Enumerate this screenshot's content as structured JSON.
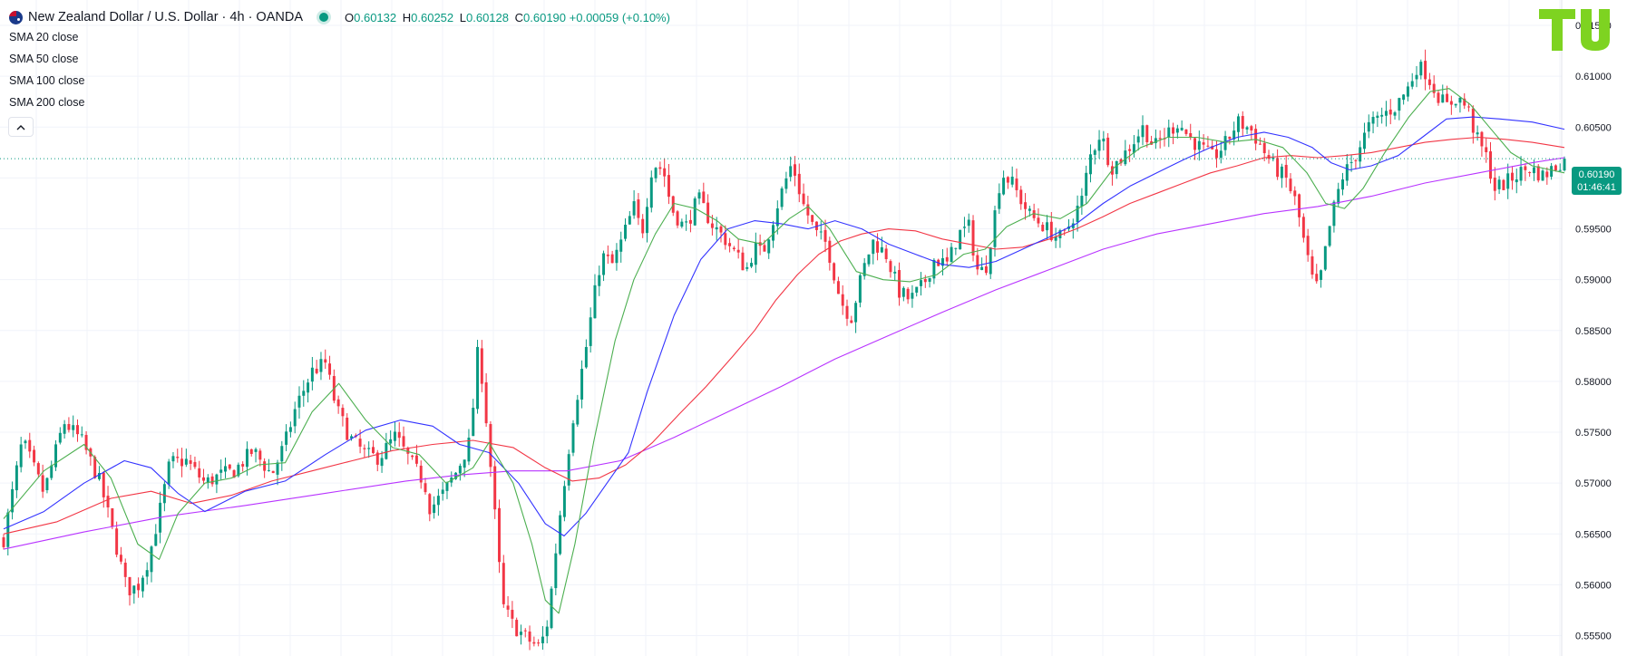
{
  "header": {
    "title": "New Zealand Dollar / U.S. Dollar · 4h · OANDA",
    "ohlc": [
      {
        "key": "O",
        "value": "0.60132"
      },
      {
        "key": "H",
        "value": "0.60252"
      },
      {
        "key": "L",
        "value": "0.60128"
      },
      {
        "key": "C",
        "value": "0.60190"
      }
    ],
    "change": "+0.00059 (+0.10%)"
  },
  "indicators": [
    {
      "label": "SMA",
      "param": "20 close",
      "color": "#4caf50"
    },
    {
      "label": "SMA",
      "param": "50 close",
      "color": "#3333ff"
    },
    {
      "label": "SMA",
      "param": "100 close",
      "color": "#f23645"
    },
    {
      "label": "SMA",
      "param": "200 close",
      "color": "#b833ff"
    }
  ],
  "collapse_icon": "chevron-up-icon",
  "logo_text": "TU",
  "current_price": {
    "price": "0.60190",
    "countdown": "01:46:41"
  },
  "colors": {
    "up": "#089981",
    "down": "#f23645",
    "grid": "#f0f3fa",
    "accent": "#089981",
    "logo": "#7ed321"
  },
  "chart_data": {
    "type": "candlestick",
    "symbol": "NZDUSD",
    "timeframe": "4h",
    "ylim": [
      0.553,
      0.6175
    ],
    "y_ticks": [
      "0.61500",
      "0.61000",
      "0.60500",
      "0.60000",
      "0.59500",
      "0.59000",
      "0.58500",
      "0.58000",
      "0.57500",
      "0.57000",
      "0.56500",
      "0.56000",
      "0.55500"
    ],
    "last_price": 0.6019,
    "candle_count": 360,
    "close_path": [
      [
        0,
        0.5645
      ],
      [
        14,
        0.5742
      ],
      [
        30,
        0.569
      ],
      [
        45,
        0.576
      ],
      [
        58,
        0.5742
      ],
      [
        72,
        0.57
      ],
      [
        84,
        0.5638
      ],
      [
        92,
        0.5595
      ],
      [
        100,
        0.5598
      ],
      [
        108,
        0.5625
      ],
      [
        116,
        0.567
      ],
      [
        124,
        0.572
      ],
      [
        136,
        0.5722
      ],
      [
        150,
        0.57
      ],
      [
        162,
        0.5708
      ],
      [
        172,
        0.5712
      ],
      [
        186,
        0.5732
      ],
      [
        200,
        0.5708
      ],
      [
        210,
        0.574
      ],
      [
        218,
        0.5775
      ],
      [
        230,
        0.581
      ],
      [
        240,
        0.5818
      ],
      [
        248,
        0.5774
      ],
      [
        258,
        0.5745
      ],
      [
        270,
        0.5728
      ],
      [
        280,
        0.5725
      ],
      [
        292,
        0.5746
      ],
      [
        304,
        0.572
      ],
      [
        314,
        0.57
      ],
      [
        318,
        0.5675
      ],
      [
        328,
        0.569
      ],
      [
        338,
        0.5712
      ],
      [
        348,
        0.5742
      ],
      [
        354,
        0.5835
      ],
      [
        358,
        0.579
      ],
      [
        365,
        0.569
      ],
      [
        372,
        0.558
      ],
      [
        380,
        0.556
      ],
      [
        392,
        0.5545
      ],
      [
        400,
        0.5538
      ],
      [
        406,
        0.5565
      ],
      [
        414,
        0.566
      ],
      [
        424,
        0.576
      ],
      [
        434,
        0.583
      ],
      [
        440,
        0.588
      ],
      [
        446,
        0.5924
      ],
      [
        454,
        0.5915
      ],
      [
        460,
        0.5935
      ],
      [
        470,
        0.5972
      ],
      [
        476,
        0.5945
      ],
      [
        484,
        0.6015
      ],
      [
        492,
        0.6008
      ],
      [
        498,
        0.597
      ],
      [
        508,
        0.595
      ],
      [
        518,
        0.598
      ],
      [
        528,
        0.5955
      ],
      [
        538,
        0.594
      ],
      [
        546,
        0.5925
      ],
      [
        554,
        0.591
      ],
      [
        560,
        0.5932
      ],
      [
        566,
        0.5925
      ],
      [
        578,
        0.5978
      ],
      [
        588,
        0.6015
      ],
      [
        596,
        0.5975
      ],
      [
        606,
        0.5945
      ],
      [
        614,
        0.5935
      ],
      [
        624,
        0.588
      ],
      [
        632,
        0.5862
      ],
      [
        640,
        0.5905
      ],
      [
        648,
        0.5938
      ],
      [
        658,
        0.5925
      ],
      [
        668,
        0.5888
      ],
      [
        676,
        0.588
      ],
      [
        686,
        0.5895
      ],
      [
        694,
        0.592
      ],
      [
        704,
        0.5915
      ],
      [
        712,
        0.5945
      ],
      [
        720,
        0.5952
      ],
      [
        726,
        0.591
      ],
      [
        732,
        0.5908
      ],
      [
        738,
        0.5955
      ],
      [
        744,
        0.6005
      ],
      [
        752,
        0.5995
      ],
      [
        760,
        0.5975
      ],
      [
        766,
        0.5962
      ],
      [
        774,
        0.5955
      ],
      [
        782,
        0.5945
      ],
      [
        790,
        0.594
      ],
      [
        796,
        0.5958
      ],
      [
        804,
        0.5978
      ],
      [
        810,
        0.602
      ],
      [
        818,
        0.6045
      ],
      [
        826,
        0.601
      ],
      [
        834,
        0.602
      ],
      [
        842,
        0.6035
      ],
      [
        850,
        0.605
      ],
      [
        858,
        0.603
      ],
      [
        866,
        0.6042
      ],
      [
        876,
        0.6055
      ],
      [
        884,
        0.604
      ],
      [
        894,
        0.6028
      ],
      [
        902,
        0.602
      ],
      [
        912,
        0.6035
      ],
      [
        920,
        0.6055
      ],
      [
        930,
        0.6048
      ],
      [
        938,
        0.603
      ],
      [
        948,
        0.601
      ],
      [
        956,
        0.6
      ],
      [
        964,
        0.5975
      ],
      [
        970,
        0.5935
      ],
      [
        976,
        0.59
      ],
      [
        980,
        0.589
      ],
      [
        984,
        0.5915
      ],
      [
        990,
        0.596
      ],
      [
        998,
        0.6
      ],
      [
        1008,
        0.6022
      ],
      [
        1018,
        0.605
      ],
      [
        1028,
        0.6062
      ],
      [
        1038,
        0.607
      ],
      [
        1048,
        0.609
      ],
      [
        1054,
        0.611
      ],
      [
        1060,
        0.6105
      ],
      [
        1068,
        0.6085
      ],
      [
        1076,
        0.607
      ],
      [
        1084,
        0.608
      ],
      [
        1092,
        0.6068
      ],
      [
        1098,
        0.604
      ],
      [
        1106,
        0.602
      ],
      [
        1112,
        0.599
      ],
      [
        1120,
        0.5995
      ],
      [
        1130,
        0.6005
      ],
      [
        1138,
        0.601
      ],
      [
        1148,
        0.6002
      ],
      [
        1158,
        0.6012
      ],
      [
        1164,
        0.6019
      ]
    ],
    "sma_20": [
      [
        0,
        0.5665
      ],
      [
        30,
        0.5712
      ],
      [
        60,
        0.5738
      ],
      [
        80,
        0.5705
      ],
      [
        100,
        0.564
      ],
      [
        116,
        0.5625
      ],
      [
        130,
        0.567
      ],
      [
        150,
        0.57
      ],
      [
        170,
        0.5705
      ],
      [
        190,
        0.5718
      ],
      [
        210,
        0.572
      ],
      [
        230,
        0.577
      ],
      [
        250,
        0.5798
      ],
      [
        270,
        0.5762
      ],
      [
        290,
        0.5735
      ],
      [
        310,
        0.5728
      ],
      [
        330,
        0.57
      ],
      [
        350,
        0.5715
      ],
      [
        362,
        0.574
      ],
      [
        380,
        0.57
      ],
      [
        394,
        0.564
      ],
      [
        404,
        0.5585
      ],
      [
        414,
        0.5572
      ],
      [
        426,
        0.564
      ],
      [
        440,
        0.574
      ],
      [
        456,
        0.584
      ],
      [
        470,
        0.59
      ],
      [
        486,
        0.5945
      ],
      [
        500,
        0.5975
      ],
      [
        516,
        0.597
      ],
      [
        532,
        0.5958
      ],
      [
        548,
        0.594
      ],
      [
        566,
        0.5935
      ],
      [
        586,
        0.596
      ],
      [
        600,
        0.5972
      ],
      [
        616,
        0.595
      ],
      [
        636,
        0.5908
      ],
      [
        656,
        0.59
      ],
      [
        676,
        0.5898
      ],
      [
        696,
        0.5905
      ],
      [
        716,
        0.5925
      ],
      [
        732,
        0.593
      ],
      [
        748,
        0.5952
      ],
      [
        768,
        0.5965
      ],
      [
        788,
        0.596
      ],
      [
        808,
        0.5975
      ],
      [
        828,
        0.601
      ],
      [
        848,
        0.603
      ],
      [
        868,
        0.604
      ],
      [
        890,
        0.604
      ],
      [
        912,
        0.6035
      ],
      [
        934,
        0.6038
      ],
      [
        954,
        0.603
      ],
      [
        972,
        0.6005
      ],
      [
        986,
        0.5975
      ],
      [
        1000,
        0.597
      ],
      [
        1014,
        0.599
      ],
      [
        1030,
        0.6025
      ],
      [
        1048,
        0.606
      ],
      [
        1064,
        0.6085
      ],
      [
        1078,
        0.6088
      ],
      [
        1094,
        0.6072
      ],
      [
        1108,
        0.605
      ],
      [
        1124,
        0.6025
      ],
      [
        1140,
        0.6012
      ],
      [
        1164,
        0.6005
      ]
    ],
    "sma_50": [
      [
        0,
        0.5655
      ],
      [
        30,
        0.5672
      ],
      [
        60,
        0.57
      ],
      [
        90,
        0.5722
      ],
      [
        110,
        0.5715
      ],
      [
        130,
        0.569
      ],
      [
        150,
        0.5672
      ],
      [
        180,
        0.5692
      ],
      [
        210,
        0.5702
      ],
      [
        240,
        0.5728
      ],
      [
        270,
        0.5752
      ],
      [
        296,
        0.5762
      ],
      [
        320,
        0.5756
      ],
      [
        340,
        0.5738
      ],
      [
        362,
        0.573
      ],
      [
        384,
        0.57
      ],
      [
        404,
        0.566
      ],
      [
        418,
        0.5648
      ],
      [
        434,
        0.567
      ],
      [
        450,
        0.57
      ],
      [
        466,
        0.573
      ],
      [
        480,
        0.579
      ],
      [
        500,
        0.5865
      ],
      [
        520,
        0.592
      ],
      [
        540,
        0.595
      ],
      [
        560,
        0.5958
      ],
      [
        580,
        0.5955
      ],
      [
        600,
        0.595
      ],
      [
        620,
        0.5958
      ],
      [
        640,
        0.595
      ],
      [
        660,
        0.5935
      ],
      [
        680,
        0.5925
      ],
      [
        700,
        0.5915
      ],
      [
        720,
        0.5912
      ],
      [
        740,
        0.5918
      ],
      [
        760,
        0.593
      ],
      [
        780,
        0.5942
      ],
      [
        800,
        0.5955
      ],
      [
        820,
        0.5975
      ],
      [
        840,
        0.5992
      ],
      [
        860,
        0.6005
      ],
      [
        880,
        0.6018
      ],
      [
        900,
        0.603
      ],
      [
        920,
        0.604
      ],
      [
        940,
        0.6045
      ],
      [
        958,
        0.604
      ],
      [
        976,
        0.603
      ],
      [
        990,
        0.6015
      ],
      [
        1004,
        0.6008
      ],
      [
        1020,
        0.6012
      ],
      [
        1040,
        0.6022
      ],
      [
        1058,
        0.604
      ],
      [
        1076,
        0.6058
      ],
      [
        1096,
        0.606
      ],
      [
        1116,
        0.6058
      ],
      [
        1140,
        0.6055
      ],
      [
        1164,
        0.6048
      ]
    ],
    "sma_100": [
      [
        0,
        0.565
      ],
      [
        40,
        0.5662
      ],
      [
        80,
        0.5685
      ],
      [
        110,
        0.5692
      ],
      [
        140,
        0.568
      ],
      [
        170,
        0.5688
      ],
      [
        200,
        0.5702
      ],
      [
        230,
        0.5712
      ],
      [
        260,
        0.5722
      ],
      [
        290,
        0.5732
      ],
      [
        320,
        0.5738
      ],
      [
        350,
        0.5742
      ],
      [
        380,
        0.5735
      ],
      [
        404,
        0.5715
      ],
      [
        424,
        0.5702
      ],
      [
        444,
        0.5705
      ],
      [
        464,
        0.5718
      ],
      [
        484,
        0.574
      ],
      [
        504,
        0.5768
      ],
      [
        524,
        0.5795
      ],
      [
        544,
        0.5825
      ],
      [
        560,
        0.585
      ],
      [
        576,
        0.588
      ],
      [
        592,
        0.5905
      ],
      [
        608,
        0.5925
      ],
      [
        624,
        0.5938
      ],
      [
        640,
        0.5945
      ],
      [
        660,
        0.595
      ],
      [
        680,
        0.5948
      ],
      [
        700,
        0.594
      ],
      [
        720,
        0.5935
      ],
      [
        740,
        0.593
      ],
      [
        760,
        0.5932
      ],
      [
        780,
        0.594
      ],
      [
        800,
        0.595
      ],
      [
        820,
        0.5962
      ],
      [
        840,
        0.5975
      ],
      [
        860,
        0.5985
      ],
      [
        880,
        0.5995
      ],
      [
        900,
        0.6005
      ],
      [
        920,
        0.6012
      ],
      [
        940,
        0.602
      ],
      [
        960,
        0.6022
      ],
      [
        980,
        0.602
      ],
      [
        1000,
        0.6022
      ],
      [
        1020,
        0.6025
      ],
      [
        1040,
        0.603
      ],
      [
        1060,
        0.6035
      ],
      [
        1080,
        0.6038
      ],
      [
        1100,
        0.604
      ],
      [
        1120,
        0.6038
      ],
      [
        1140,
        0.6035
      ],
      [
        1164,
        0.603
      ]
    ],
    "sma_200": [
      [
        0,
        0.5635
      ],
      [
        60,
        0.5652
      ],
      [
        120,
        0.5667
      ],
      [
        180,
        0.5678
      ],
      [
        240,
        0.569
      ],
      [
        300,
        0.5702
      ],
      [
        340,
        0.5708
      ],
      [
        380,
        0.5712
      ],
      [
        420,
        0.5712
      ],
      [
        460,
        0.5722
      ],
      [
        500,
        0.5745
      ],
      [
        540,
        0.577
      ],
      [
        580,
        0.5795
      ],
      [
        620,
        0.5822
      ],
      [
        660,
        0.5845
      ],
      [
        700,
        0.5868
      ],
      [
        740,
        0.589
      ],
      [
        780,
        0.591
      ],
      [
        820,
        0.593
      ],
      [
        860,
        0.5945
      ],
      [
        900,
        0.5955
      ],
      [
        940,
        0.5965
      ],
      [
        980,
        0.5972
      ],
      [
        1020,
        0.5982
      ],
      [
        1060,
        0.5995
      ],
      [
        1100,
        0.6005
      ],
      [
        1140,
        0.6015
      ],
      [
        1164,
        0.602
      ]
    ]
  }
}
